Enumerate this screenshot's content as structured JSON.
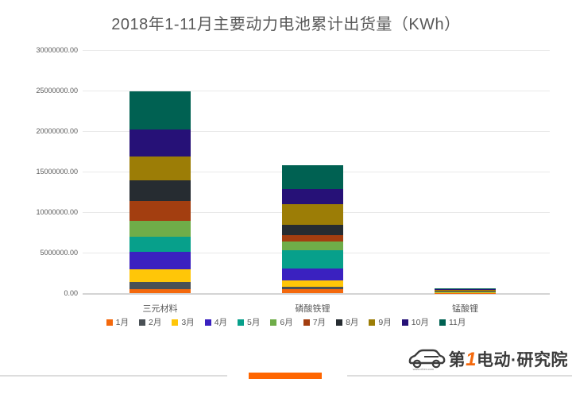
{
  "title": "2018年1-11月主要动力电池累计出货量（KWh）",
  "chart_data": {
    "type": "bar",
    "stacked": true,
    "title": "2018年1-11月主要动力电池累计出货量（KWh）",
    "xlabel": "",
    "ylabel": "",
    "ylim": [
      0,
      30000000
    ],
    "ytick_step": 5000000,
    "ytick_labels_top_down": [
      "30000000.00",
      "25000000.00",
      "20000000.00",
      "15000000.00",
      "10000000.00",
      "5000000.00",
      "0.00"
    ],
    "grid": true,
    "legend_position": "bottom",
    "categories": [
      "三元材料",
      "磷酸铁锂",
      "锰酸锂"
    ],
    "series": [
      {
        "name": "1月",
        "color": "#F4690D",
        "values": [
          490000,
          490000,
          20000
        ]
      },
      {
        "name": "2月",
        "color": "#4A5055",
        "values": [
          880000,
          320000,
          20000
        ]
      },
      {
        "name": "3月",
        "color": "#FFC608",
        "values": [
          1540000,
          730000,
          40000
        ]
      },
      {
        "name": "4月",
        "color": "#3A21C0",
        "values": [
          2210000,
          1470000,
          50000
        ]
      },
      {
        "name": "5月",
        "color": "#07A08B",
        "values": [
          1860000,
          2280000,
          60000
        ]
      },
      {
        "name": "6月",
        "color": "#6FAD49",
        "values": [
          1960000,
          1050000,
          50000
        ]
      },
      {
        "name": "7月",
        "color": "#A33E10",
        "values": [
          2390000,
          840000,
          40000
        ]
      },
      {
        "name": "8月",
        "color": "#262C31",
        "values": [
          2610000,
          1220000,
          50000
        ]
      },
      {
        "name": "9月",
        "color": "#9C7D06",
        "values": [
          2940000,
          2550000,
          60000
        ]
      },
      {
        "name": "10月",
        "color": "#261177",
        "values": [
          3330000,
          1860000,
          70000
        ]
      },
      {
        "name": "11月",
        "color": "#006152",
        "values": [
          4700000,
          2940000,
          140000
        ]
      }
    ],
    "category_totals": [
      24930000,
      15770000,
      600000
    ]
  },
  "footer": {
    "accent_color": "#FF6600",
    "logo": {
      "brand_prefix": "第",
      "brand_number": "1",
      "brand_suffix": "电动",
      "separator": "·",
      "brand_org": "研究院",
      "url": "www.d1ev.com",
      "number_color": "#F4690D",
      "text_color": "#3b3b3b"
    }
  }
}
